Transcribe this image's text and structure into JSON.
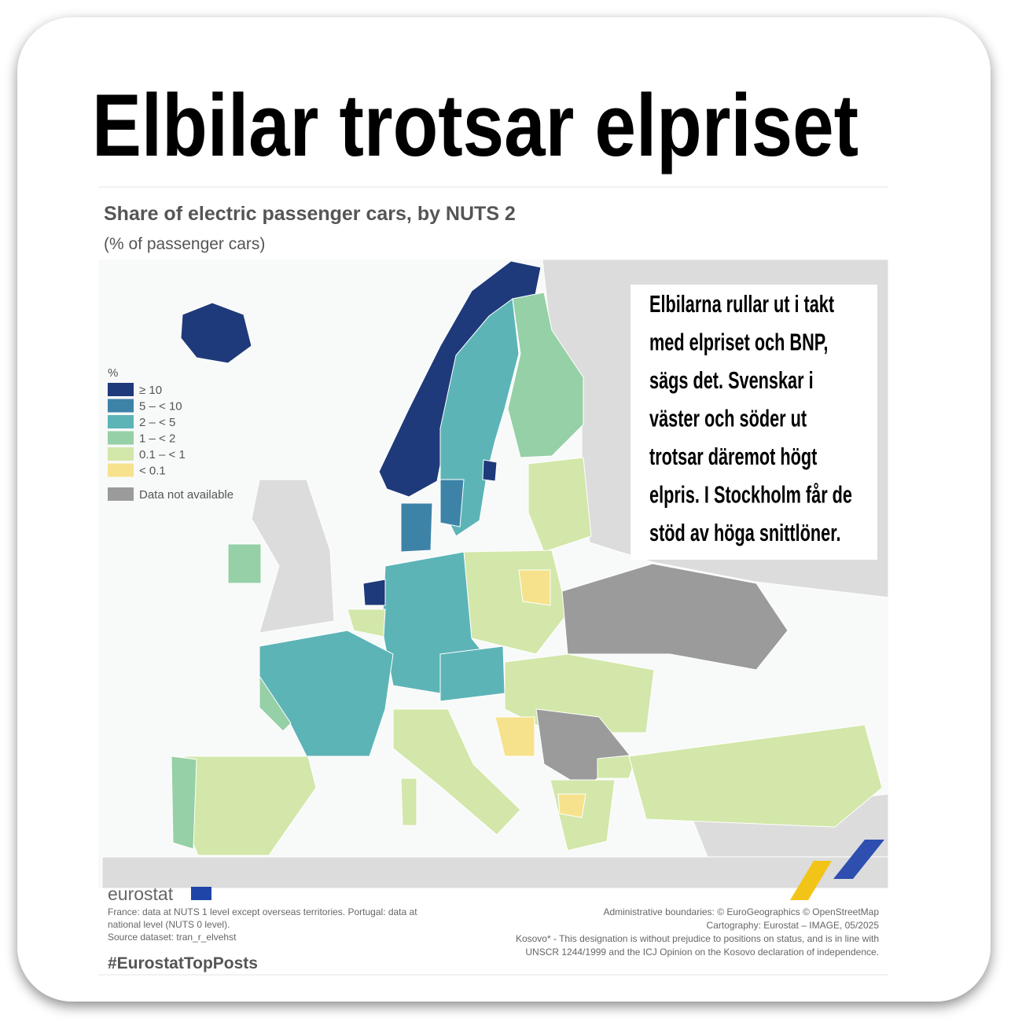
{
  "title": "Elbilar trotsar elpriset",
  "map": {
    "title": "Share of electric passenger cars, by NUTS 2",
    "subtitle": "(% of passenger cars)",
    "legend": {
      "unit": "%",
      "items": [
        {
          "label": "≥ 10",
          "color": "#1f3a7a"
        },
        {
          "label": "5 – < 10",
          "color": "#3d83a8"
        },
        {
          "label": "2 – < 5",
          "color": "#5db4b6"
        },
        {
          "label": "1 – < 2",
          "color": "#95d0a6"
        },
        {
          "label": "0.1 – < 1",
          "color": "#d2e7a9"
        },
        {
          "label": "< 0.1",
          "color": "#f6e28c"
        },
        {
          "label": "Data not available",
          "color": "#9b9b9b"
        }
      ]
    }
  },
  "callout": {
    "lines": [
      "Elbilarna rullar ut i takt",
      "med elpriset och BNP,",
      "sägs det. Svenskar i",
      "väster och söder ut",
      "trotsar däremot högt",
      "elpris. I Stockholm får de",
      "stöd av höga snittlöner."
    ]
  },
  "footer": {
    "logo": "eurostat",
    "notes": [
      "France: data at NUTS 1 level except overseas territories. Portugal: data at",
      "national level (NUTS 0 level).",
      "Source dataset: tran_r_elvehst"
    ],
    "credits": [
      "Administrative boundaries: © EuroGeographics © OpenStreetMap",
      "Cartography: Eurostat – IMAGE, 05/2025",
      "Kosovo* - This designation is without prejudice to positions on status, and is in line with",
      "UNSCR 1244/1999 and the ICJ Opinion on the Kosovo declaration of independence."
    ],
    "hashtag": "#EurostatTopPosts"
  }
}
